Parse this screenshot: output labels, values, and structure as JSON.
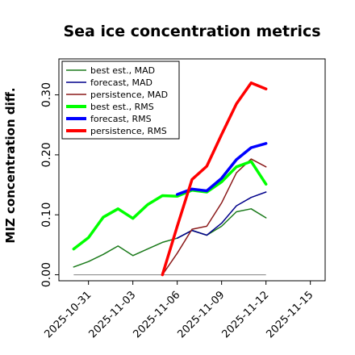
{
  "chart_data": {
    "type": "line",
    "title": "Sea ice concentration metrics",
    "xlabel": "",
    "ylabel": "MIZ concentration diff.",
    "x_ticks": [
      "2025-10-31",
      "2025-11-03",
      "2025-11-06",
      "2025-11-09",
      "2025-11-12",
      "2025-11-15"
    ],
    "highlight_tick": "2025-11-06",
    "highlight_color": "#2e8b2e",
    "xlim": [
      "2025-10-29",
      "2025-11-16"
    ],
    "y_ticks": [
      "0.00",
      "0.10",
      "0.20",
      "0.30"
    ],
    "ylim": [
      -0.01,
      0.36
    ],
    "grid": false,
    "legend_position": "top-left",
    "series": [
      {
        "name": "best est., MAD",
        "color": "#1a7a1a",
        "width": 1.5,
        "x": [
          "2025-10-30",
          "2025-10-31",
          "2025-11-01",
          "2025-11-02",
          "2025-11-03",
          "2025-11-04",
          "2025-11-05",
          "2025-11-06",
          "2025-11-07",
          "2025-11-08",
          "2025-11-09",
          "2025-11-10",
          "2025-11-11",
          "2025-11-12"
        ],
        "y": [
          0.013,
          0.022,
          0.034,
          0.048,
          0.032,
          0.043,
          0.054,
          0.061,
          0.074,
          0.066,
          0.081,
          0.105,
          0.11,
          0.095
        ]
      },
      {
        "name": "forecast,  MAD",
        "color": "#00008b",
        "width": 1.5,
        "x": [
          "2025-11-06",
          "2025-11-07",
          "2025-11-08",
          "2025-11-09",
          "2025-11-10",
          "2025-11-11",
          "2025-11-12"
        ],
        "y": [
          0.061,
          0.074,
          0.066,
          0.086,
          0.115,
          0.129,
          0.138
        ]
      },
      {
        "name": "persistence, MAD",
        "color": "#8b1a1a",
        "width": 1.5,
        "x": [
          "2025-11-05",
          "2025-11-06",
          "2025-11-07",
          "2025-11-08",
          "2025-11-09",
          "2025-11-10",
          "2025-11-11",
          "2025-11-12"
        ],
        "y": [
          0.0,
          0.036,
          0.076,
          0.081,
          0.12,
          0.17,
          0.193,
          0.18
        ]
      },
      {
        "name": "best est., RMS",
        "color": "#00ff00",
        "width": 3.5,
        "x": [
          "2025-10-30",
          "2025-10-31",
          "2025-11-01",
          "2025-11-02",
          "2025-11-03",
          "2025-11-04",
          "2025-11-05",
          "2025-11-06",
          "2025-11-07",
          "2025-11-08",
          "2025-11-09",
          "2025-11-10",
          "2025-11-11",
          "2025-11-12"
        ],
        "y": [
          0.043,
          0.062,
          0.096,
          0.11,
          0.094,
          0.117,
          0.132,
          0.131,
          0.141,
          0.138,
          0.155,
          0.18,
          0.189,
          0.151
        ]
      },
      {
        "name": "forecast,  RMS",
        "color": "#0000ff",
        "width": 3.5,
        "x": [
          "2025-11-06",
          "2025-11-07",
          "2025-11-08",
          "2025-11-09",
          "2025-11-10",
          "2025-11-11",
          "2025-11-12"
        ],
        "y": [
          0.134,
          0.143,
          0.14,
          0.161,
          0.192,
          0.212,
          0.219
        ]
      },
      {
        "name": "persistence, RMS",
        "color": "#ff0000",
        "width": 3.5,
        "x": [
          "2025-11-05",
          "2025-11-06",
          "2025-11-07",
          "2025-11-08",
          "2025-11-09",
          "2025-11-10",
          "2025-11-11",
          "2025-11-12"
        ],
        "y": [
          0.0,
          0.081,
          0.159,
          0.181,
          0.234,
          0.285,
          0.32,
          0.31
        ]
      }
    ],
    "baseline": {
      "x": [
        "2025-10-30",
        "2025-11-12"
      ],
      "y": [
        0.0,
        0.0
      ],
      "color": "#808080"
    }
  }
}
